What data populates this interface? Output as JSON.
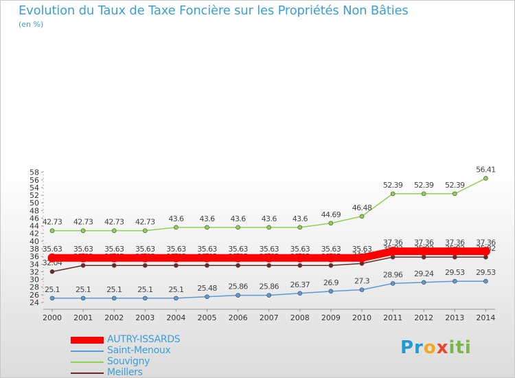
{
  "title": "Evolution du Taux de Taxe Foncière sur les Propriétés Non Bâties",
  "unit_label": "(en %)",
  "logo_text": "Proxiti",
  "chart_data": {
    "type": "line",
    "x": [
      "2000",
      "2001",
      "2002",
      "2003",
      "2004",
      "2005",
      "2006",
      "2007",
      "2008",
      "2009",
      "2010",
      "2011",
      "2012",
      "2013",
      "2014"
    ],
    "ylim": [
      24,
      58
    ],
    "yticks": [
      24,
      26,
      28,
      30,
      32,
      34,
      36,
      38,
      40,
      42,
      44,
      46,
      48,
      50,
      52,
      54,
      56,
      58
    ],
    "grid": false,
    "legend_position": "bottom-left",
    "series": [
      {
        "name": "Souvigny",
        "color": "#8fd14f",
        "values": [
          42.73,
          42.73,
          42.73,
          42.73,
          43.6,
          43.6,
          43.6,
          43.6,
          43.6,
          44.69,
          46.48,
          52.39,
          52.39,
          52.39,
          56.41
        ],
        "labels": [
          "42.73",
          "42.73",
          "42.73",
          "42.73",
          "43.6",
          "43.6",
          "43.6",
          "43.6",
          "43.6",
          "44.69",
          "46.48",
          "52.39",
          "52.39",
          "52.39",
          "56.41"
        ]
      },
      {
        "name": "Meillers",
        "color": "#6b2a2a",
        "values": [
          32.04,
          33.65,
          33.65,
          33.65,
          33.65,
          33.65,
          33.65,
          33.65,
          33.65,
          33.65,
          34.16,
          35.82,
          35.82,
          35.82,
          35.82
        ],
        "labels": [
          "32.04",
          "33.65",
          "33.65",
          "33.65",
          "33.65",
          "33.65",
          "33.65",
          "33.65",
          "33.65",
          "33.65",
          "34.16",
          "35.82",
          "35.82",
          "35.82",
          "35.82"
        ]
      },
      {
        "name": "Saint-Menoux",
        "color": "#5b9bd5",
        "values": [
          25.1,
          25.1,
          25.1,
          25.1,
          25.1,
          25.48,
          25.86,
          25.86,
          26.37,
          26.9,
          27.3,
          28.96,
          29.24,
          29.53,
          29.53
        ],
        "labels": [
          "25.1",
          "25.1",
          "25.1",
          "25.1",
          "25.1",
          "25.48",
          "25.86",
          "25.86",
          "26.37",
          "26.9",
          "27.3",
          "28.96",
          "29.24",
          "29.53",
          "29.53"
        ]
      },
      {
        "name": "AUTRY-ISSARDS",
        "color": "#ff0000",
        "values": [
          35.63,
          35.63,
          35.63,
          35.63,
          35.63,
          35.63,
          35.63,
          35.63,
          35.63,
          35.63,
          35.63,
          37.36,
          37.36,
          37.36,
          37.36
        ],
        "labels": [
          "35.63",
          "35.63",
          "35.63",
          "35.63",
          "35.63",
          "35.63",
          "35.63",
          "35.63",
          "35.63",
          "35.63",
          "35.63",
          "37.36",
          "37.36",
          "37.36",
          "37.36"
        ]
      }
    ],
    "legend": [
      {
        "name": "AUTRY-ISSARDS",
        "color": "#ff0000",
        "thick": true
      },
      {
        "name": "Saint-Menoux",
        "color": "#5b9bd5",
        "thick": false
      },
      {
        "name": "Souvigny",
        "color": "#8fd14f",
        "thick": false
      },
      {
        "name": "Meillers",
        "color": "#6b2a2a",
        "thick": false
      }
    ]
  }
}
